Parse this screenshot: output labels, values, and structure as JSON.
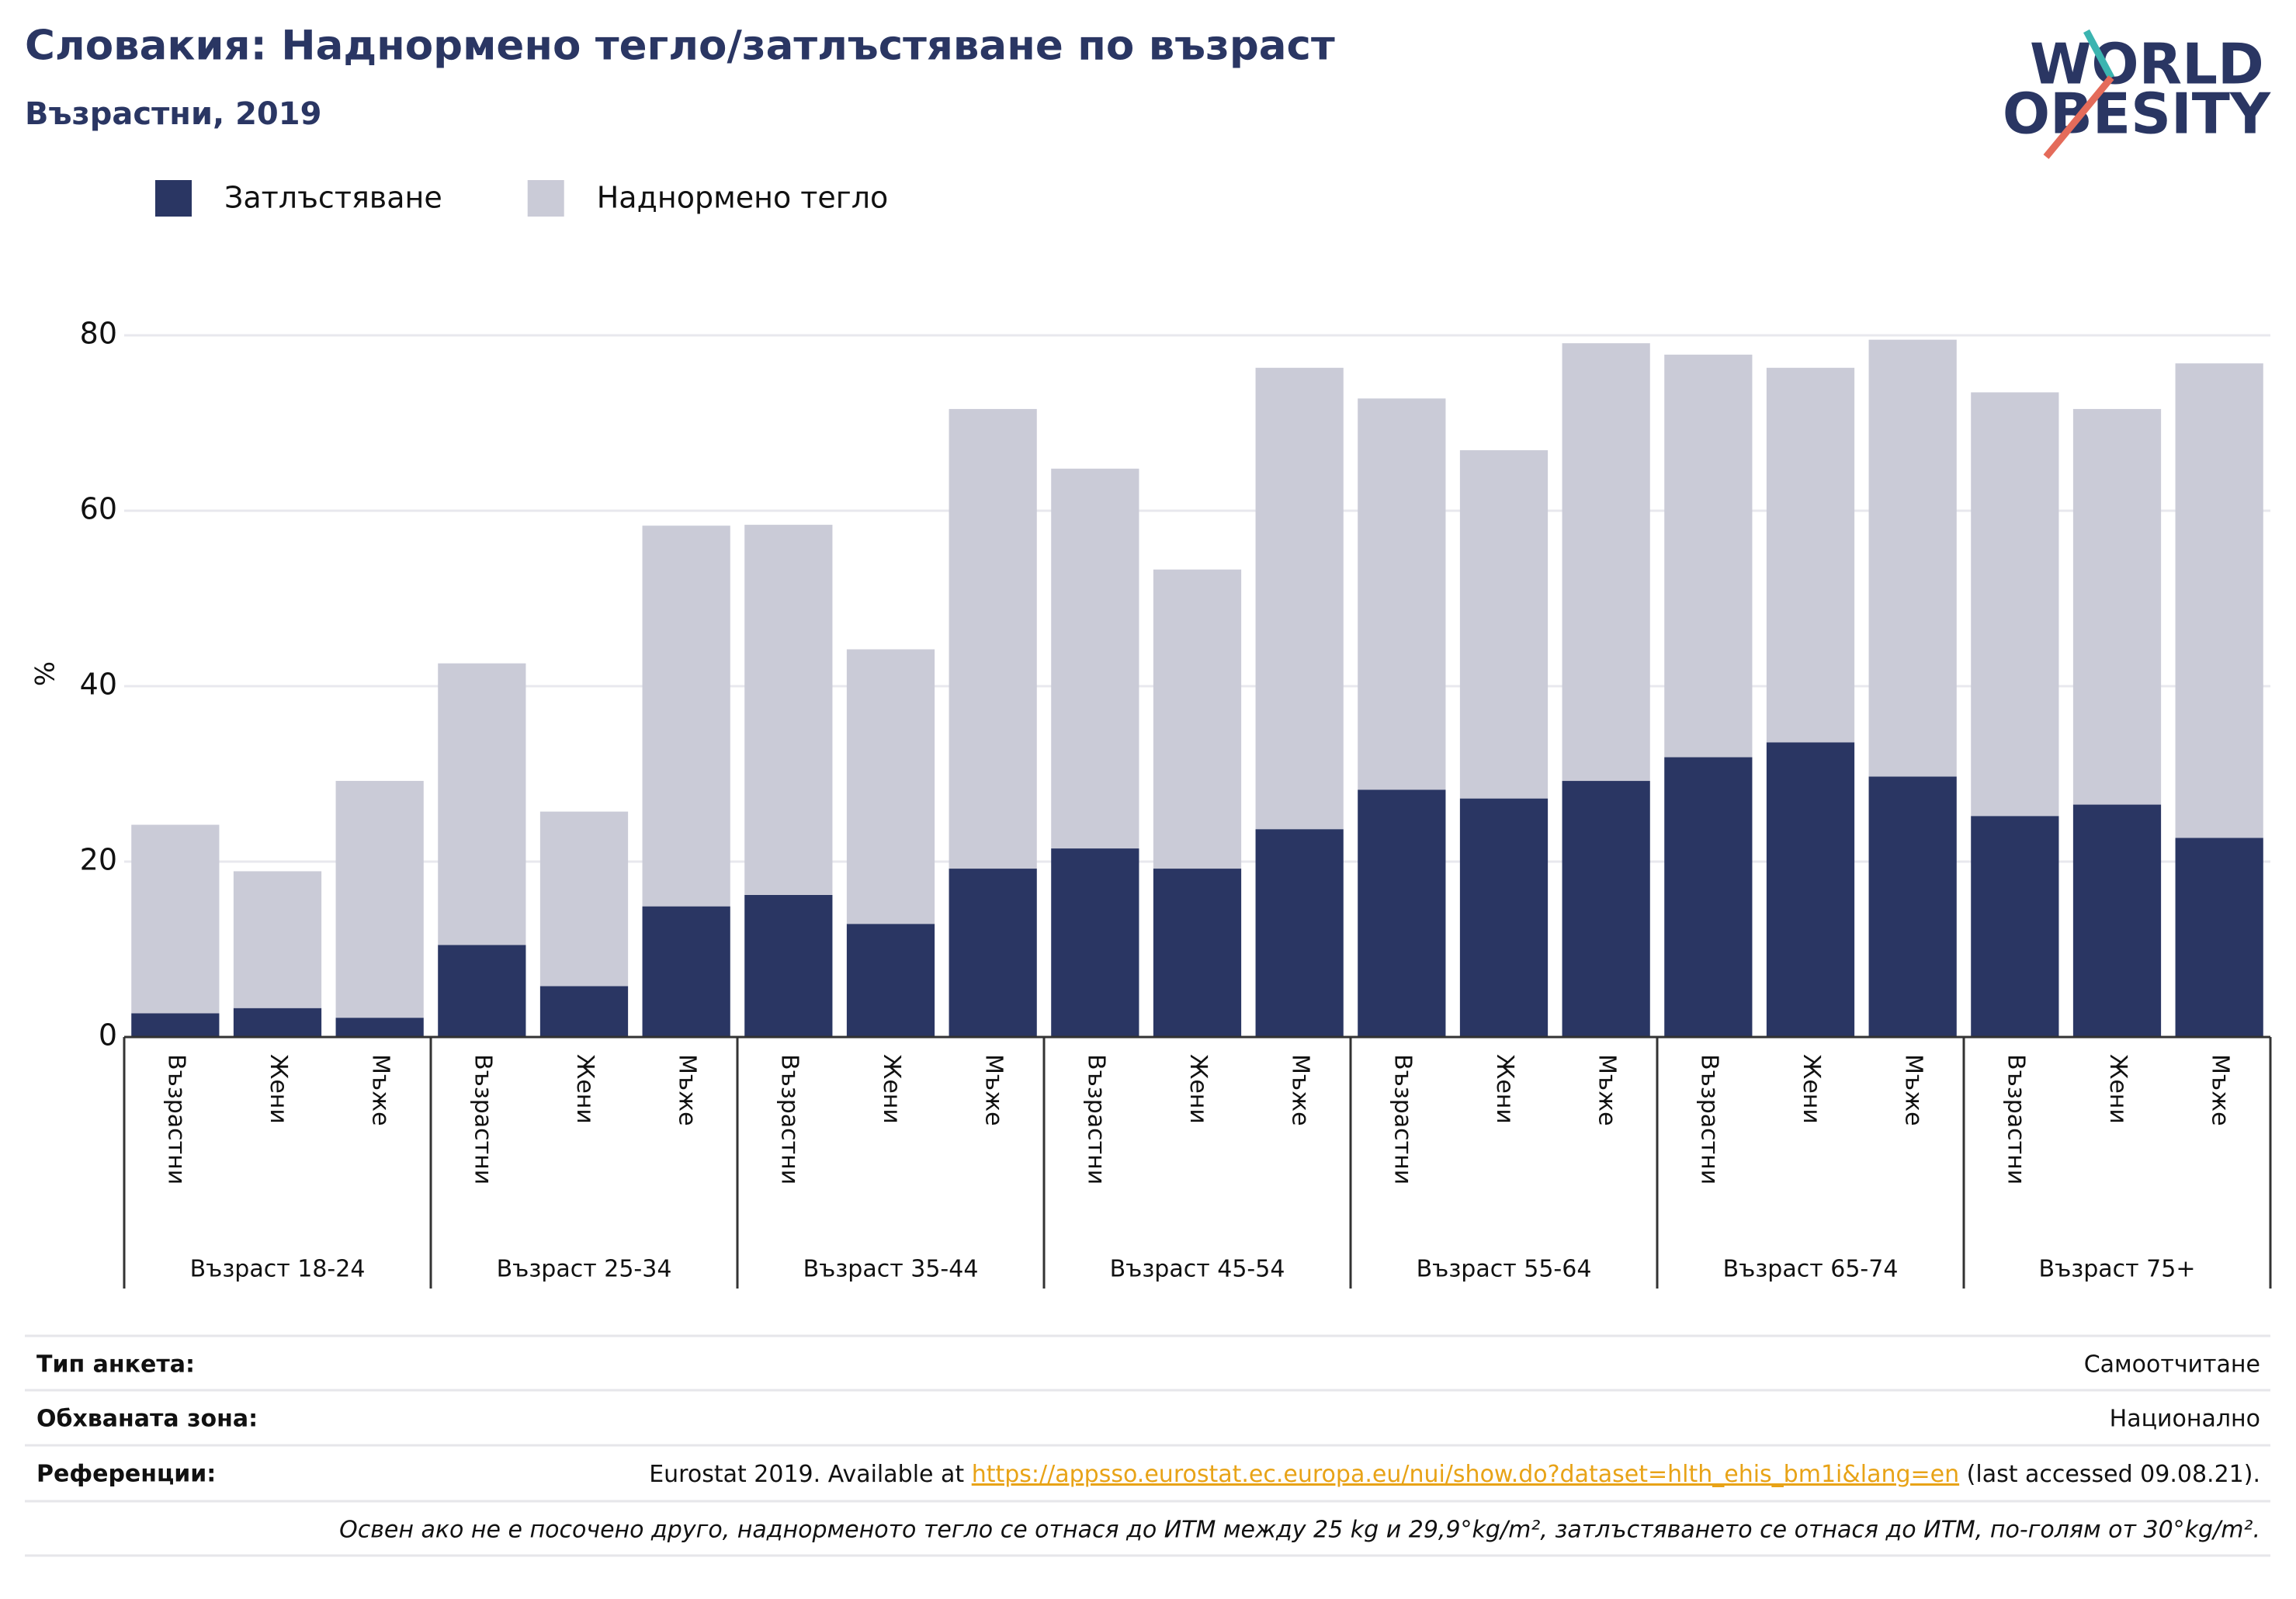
{
  "chart_data": {
    "type": "stacked_bar",
    "title": "Словакия: Наднормено тегло/затлъстяване по възраст",
    "subtitle": "Възрастни, 2019",
    "y_label": "%",
    "categories": [
      "Възрастни",
      "Жени",
      "Мъже",
      "Възрастни",
      "Жени",
      "Мъже",
      "Възрастни",
      "Жени",
      "Мъже",
      "Възрастни",
      "Жени",
      "Мъже",
      "Възрастни",
      "Жени",
      "Мъже",
      "Възрастни",
      "Жени",
      "Мъже",
      "Възрастни",
      "Жени",
      "Мъже"
    ],
    "groups": [
      "Възраст 18-24",
      "Възраст 25-34",
      "Възраст 35-44",
      "Възраст 45-54",
      "Възраст 55-64",
      "Възраст 65-74",
      "Възраст 75+"
    ],
    "series": [
      {
        "name": "Затлъстяване",
        "color": "#2a3663",
        "values": [
          2.7,
          3.3,
          2.2,
          10.5,
          5.8,
          14.9,
          16.2,
          12.9,
          19.2,
          21.5,
          19.2,
          23.7,
          28.2,
          27.2,
          29.2,
          31.9,
          33.6,
          29.7,
          25.2,
          26.5,
          22.7
        ]
      },
      {
        "name": "Наднормено тегло",
        "color": "#cacbd7",
        "values": [
          21.5,
          15.6,
          27.0,
          32.1,
          19.9,
          43.4,
          42.2,
          31.3,
          52.4,
          43.3,
          34.1,
          52.6,
          44.6,
          39.7,
          49.9,
          45.9,
          42.7,
          49.8,
          48.3,
          45.1,
          54.1
        ]
      }
    ],
    "ylim": [
      0,
      80
    ],
    "yticks": [
      0,
      20,
      40,
      60,
      80
    ],
    "grid": true,
    "legend": "top-left"
  },
  "logo": {
    "line1": "WORLD",
    "line2": "OBESITY"
  },
  "footer": {
    "rows": [
      {
        "label": "Тип анкета:",
        "value": "Самоотчитане"
      },
      {
        "label": "Обхваната зона:",
        "value": "Национално"
      }
    ],
    "reference": {
      "label": "Референции:",
      "before": "Eurostat 2019. Available at ",
      "link": "https://appsso.eurostat.ec.europa.eu/nui/show.do?dataset=hlth_ehis_bm1i&lang=en",
      "after": " (last accessed 09.08.21)."
    },
    "note": "Освен ако не е посочено друго, наднорменото тегло се отнася до ИТМ между 25 kg и 29,9°kg/m², затлъстяването се отнася до ИТМ, по-голям от 30°kg/m²."
  }
}
